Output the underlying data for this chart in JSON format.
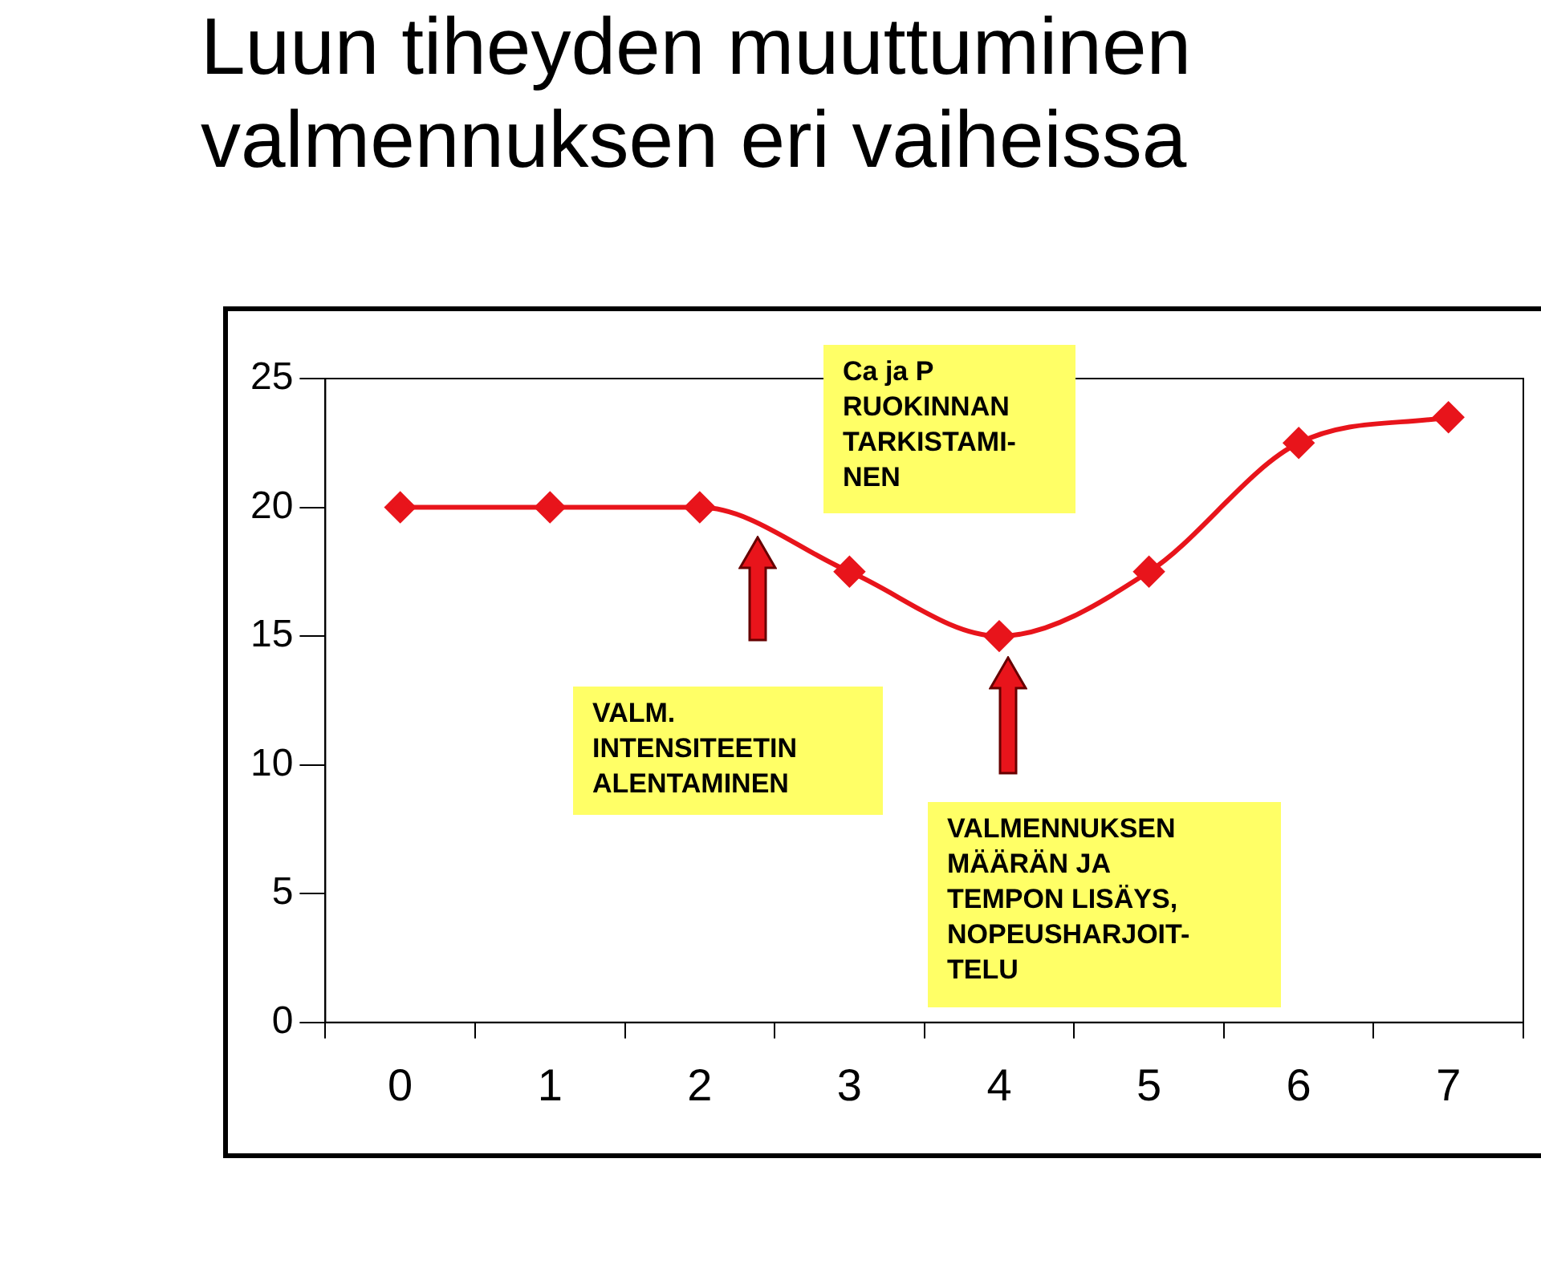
{
  "chart_data": {
    "type": "line",
    "title": "Luun tiheyden muuttuminen\nvalmennuksen eri vaiheissa",
    "categories": [
      "0",
      "1",
      "2",
      "3",
      "4",
      "5",
      "6",
      "7"
    ],
    "series": [
      {
        "color": "#e8141b",
        "values": [
          20,
          20,
          20,
          17.5,
          15,
          17.5,
          22.5,
          23.5
        ]
      }
    ],
    "ylim": [
      0,
      25
    ],
    "yticks": [
      0,
      5,
      10,
      15,
      20,
      25
    ],
    "grid": false,
    "legend": false,
    "marker": "diamond",
    "line_style": "solid",
    "annotations": [
      "Ca ja P\nRUOKINNAN\nTARKISTAMI-\nNEN",
      "VALM.\nINTENSITEETIN\nALENTAMINEN",
      "VALMENNUKSEN\nMÄÄRÄN JA\nTEMPON LISÄYS,\nNOPEUSHARJOIT-\nTELU"
    ]
  }
}
